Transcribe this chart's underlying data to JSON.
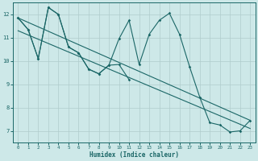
{
  "xlabel": "Humidex (Indice chaleur)",
  "bg_color": "#cde8e8",
  "grid_color": "#b0cccc",
  "line_color": "#1a6666",
  "xlim": [
    -0.5,
    23.5
  ],
  "ylim": [
    6.5,
    12.5
  ],
  "xticks": [
    0,
    1,
    2,
    3,
    4,
    5,
    6,
    7,
    8,
    9,
    10,
    11,
    12,
    13,
    14,
    15,
    16,
    17,
    18,
    19,
    20,
    21,
    22,
    23
  ],
  "yticks": [
    7,
    8,
    9,
    10,
    11,
    12
  ],
  "curve1_x": [
    0,
    1,
    2,
    3,
    4,
    5,
    6,
    7,
    8,
    9,
    10,
    11,
    12,
    13,
    14,
    15,
    16,
    17,
    18,
    19,
    20,
    21,
    22,
    23
  ],
  "curve1_y": [
    11.85,
    11.35,
    10.1,
    12.3,
    12.0,
    10.6,
    10.35,
    9.65,
    9.45,
    9.82,
    10.95,
    11.75,
    9.85,
    11.15,
    11.75,
    12.05,
    11.15,
    9.75,
    8.45,
    7.35,
    7.25,
    6.95,
    7.0,
    7.45
  ],
  "curve2_x": [
    0,
    1,
    2,
    3,
    4,
    5,
    6,
    7,
    8,
    9,
    10,
    11
  ],
  "curve2_y": [
    11.85,
    11.35,
    10.1,
    12.3,
    12.0,
    10.6,
    10.35,
    9.65,
    9.45,
    9.82,
    9.85,
    9.2
  ],
  "line1_x": [
    0,
    23
  ],
  "line1_y": [
    11.85,
    7.45
  ],
  "line2_x": [
    0,
    23
  ],
  "line2_y": [
    11.3,
    7.1
  ]
}
